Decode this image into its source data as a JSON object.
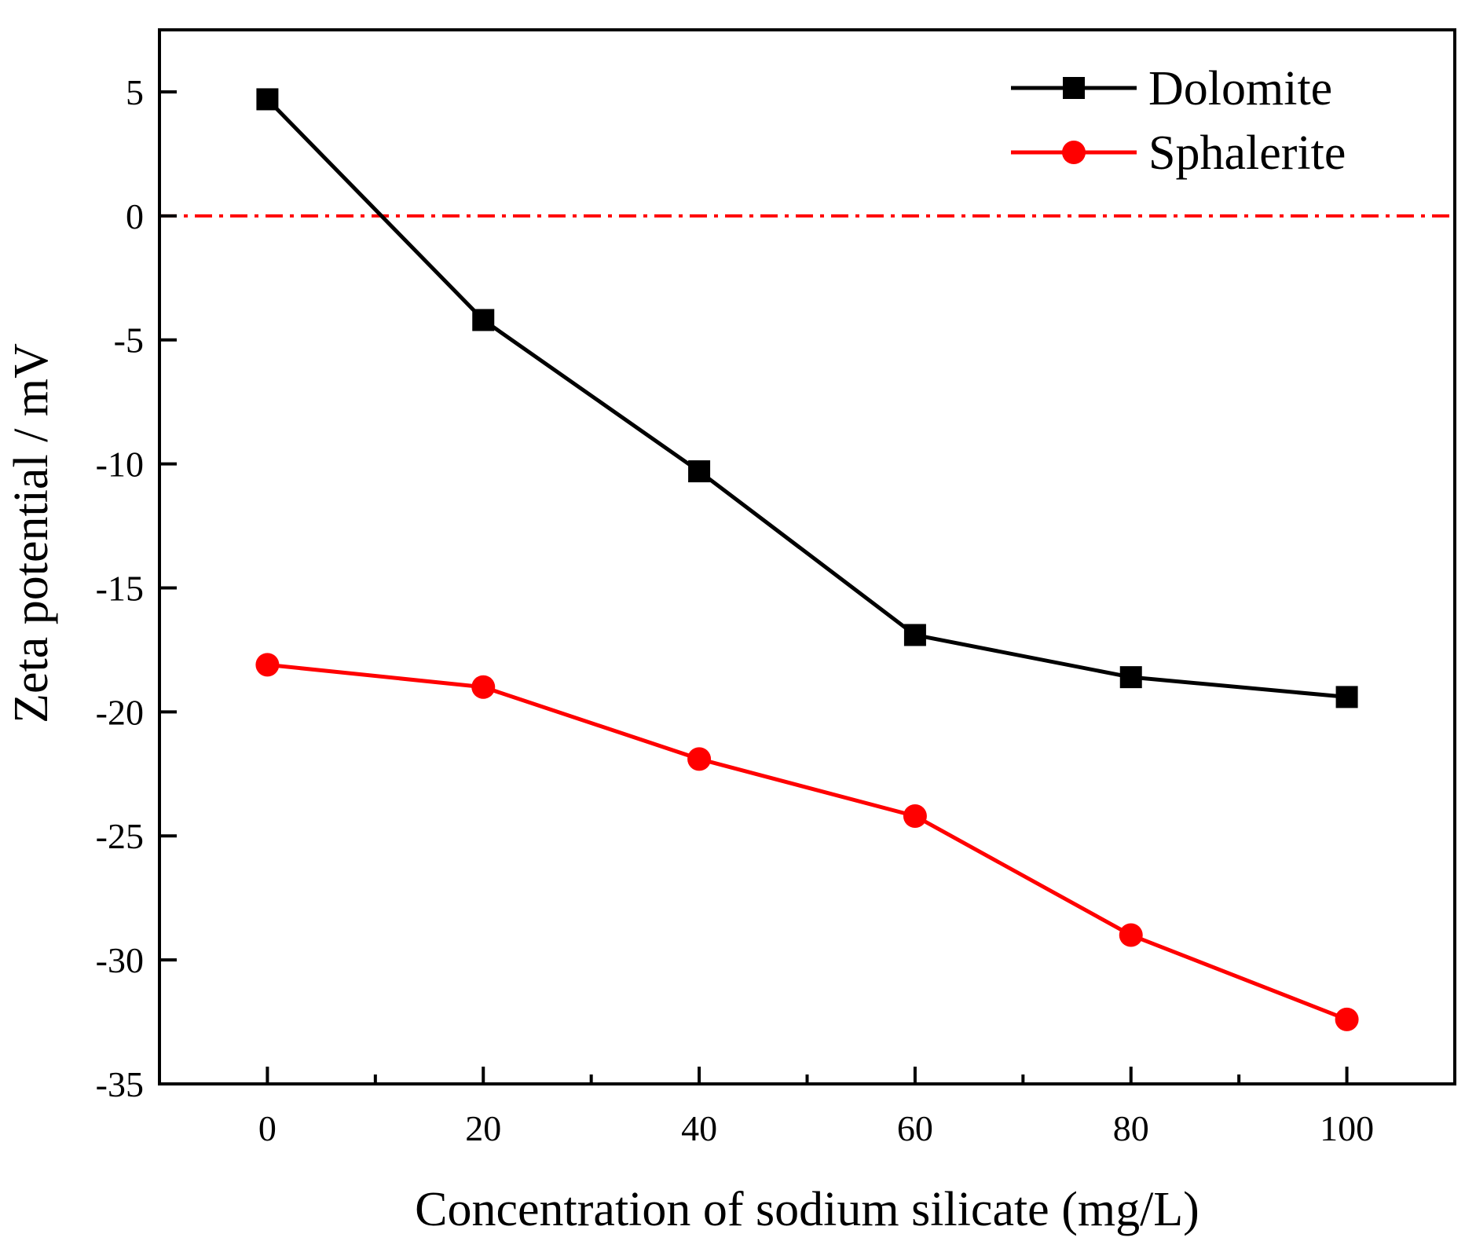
{
  "chart_data": {
    "type": "line",
    "title": "",
    "xlabel": "Concentration of sodium silicate (mg/L)",
    "ylabel": "Zeta potential / mV",
    "xlim": [
      -10,
      110
    ],
    "ylim": [
      -35,
      7.5
    ],
    "x_ticks": [
      0,
      20,
      40,
      60,
      80,
      100
    ],
    "x_tick_labels": [
      "0",
      "20",
      "40",
      "60",
      "80",
      "100"
    ],
    "x_minor_ticks": [
      -10,
      10,
      30,
      50,
      70,
      90,
      110
    ],
    "y_ticks": [
      5,
      0,
      -5,
      -10,
      -15,
      -20,
      -25,
      -30,
      -35
    ],
    "y_tick_labels": [
      "5",
      "0",
      "-5",
      "-10",
      "-15",
      "-20",
      "-25",
      "-30",
      "-35"
    ],
    "grid": false,
    "legend_position": "top-right",
    "reference_line": {
      "y": 0,
      "style": "dash-dot",
      "color": "#ff0000"
    },
    "x": [
      0,
      20,
      40,
      60,
      80,
      100
    ],
    "series": [
      {
        "name": "Dolomite",
        "color": "#000000",
        "marker": "square",
        "values": [
          4.7,
          -4.2,
          -10.3,
          -16.9,
          -18.6,
          -19.4
        ]
      },
      {
        "name": "Sphalerite",
        "color": "#ff0000",
        "marker": "circle",
        "values": [
          -18.1,
          -19.0,
          -21.9,
          -24.2,
          -29.0,
          -32.4
        ]
      }
    ]
  }
}
